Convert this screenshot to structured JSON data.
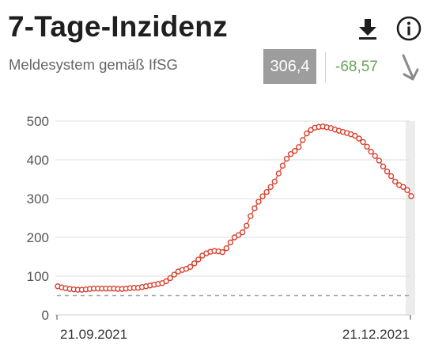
{
  "header": {
    "title": "7-Tage-Inzidenz",
    "subtitle": "Meldesystem gemäß IfSG",
    "current_value": "306,4",
    "change": "-68,57",
    "change_color": "#6aa35b",
    "trend_icon": "arrow-down-right-icon",
    "download_icon": "download-icon",
    "info_icon": "info-icon"
  },
  "colors": {
    "series": "#d9412f",
    "grid": "#dcdcdc",
    "threshold": "#a8a8a8",
    "highlight": "#ececec"
  },
  "chart_data": {
    "type": "line",
    "title": "",
    "xlabel": "",
    "ylabel": "",
    "x_start": "2021-09-21",
    "x_end": "2021-12-24",
    "x_tick_labels": [
      "21.09.2021",
      "21.12.2021"
    ],
    "ylim": [
      0,
      500
    ],
    "y_ticks": [
      0,
      100,
      200,
      300,
      400,
      500
    ],
    "threshold": 50,
    "grid": true,
    "legend": "none",
    "series": [
      {
        "values": [
          74,
          71,
          69,
          67,
          66,
          65,
          65,
          66,
          67,
          68,
          68,
          68,
          68,
          68,
          68,
          67,
          67,
          68,
          69,
          70,
          70,
          72,
          74,
          76,
          78,
          80,
          82,
          87,
          95,
          104,
          112,
          116,
          119,
          124,
          133,
          143,
          153,
          159,
          163,
          165,
          164,
          162,
          172,
          187,
          200,
          206,
          213,
          230,
          255,
          275,
          292,
          306,
          317,
          330,
          344,
          365,
          385,
          403,
          415,
          423,
          433,
          451,
          468,
          477,
          483,
          485,
          486,
          484,
          482,
          478,
          475,
          472,
          469,
          466,
          462,
          455,
          446,
          434,
          421,
          410,
          398,
          383,
          370,
          358,
          344,
          335,
          330,
          322,
          306.4
        ]
      }
    ]
  }
}
